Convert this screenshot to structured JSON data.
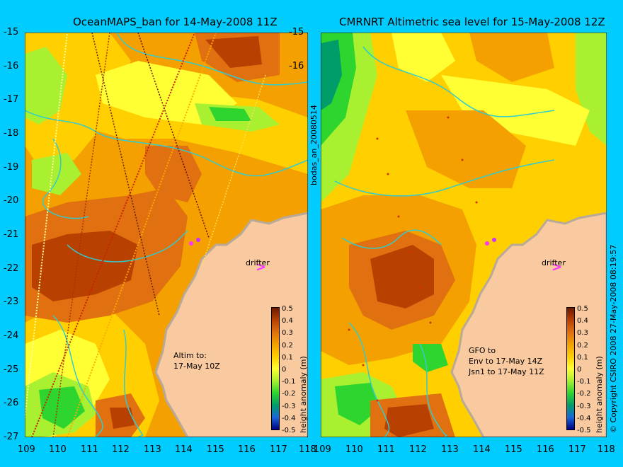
{
  "left_panel": {
    "title": "OceanMAPS_ban for 14-May-2008 11Z",
    "annotation": [
      "Altim to:",
      "17-May 10Z"
    ],
    "drifter_label": "drifter"
  },
  "right_panel": {
    "title": "CMRNRT Altimetric sea level  for 15-May-2008 12Z",
    "annotation": [
      "GFO to",
      "Env to 17-May 14Z",
      "Jsn1 to 17-May 11Z"
    ],
    "drifter_label": "drifter"
  },
  "y_ticks": [
    "-15",
    "-16",
    "-17",
    "-18",
    "-19",
    "-20",
    "-21",
    "-22",
    "-23",
    "-24",
    "-25",
    "-26",
    "-27"
  ],
  "x_ticks": [
    "109",
    "110",
    "111",
    "112",
    "113",
    "114",
    "115",
    "116",
    "117",
    "118"
  ],
  "colorbar": {
    "ticks": [
      "0.5",
      "0.4",
      "0.3",
      "0.2",
      "0.1",
      "0",
      "-0.1",
      "-0.2",
      "-0.3",
      "-0.4",
      "-0.5"
    ],
    "label": "height anomaly (m)",
    "colors": [
      "#6a1a00",
      "#b84000",
      "#e07010",
      "#f3a000",
      "#ffcf00",
      "#ffff33",
      "#a8f030",
      "#2fd52f",
      "#009d6a",
      "#1a66d9",
      "#000080"
    ]
  },
  "side_label": "bodas_an_20080514",
  "copyright": "© Copyright CSIRO 2008   27-May-2008 08:19:57",
  "map": {
    "lon_range": [
      109,
      118
    ],
    "lat_range": [
      -27,
      -15
    ],
    "land_color": "#f9c9a0",
    "coast_color": "#b8a999",
    "contour_color": "#33cccc"
  }
}
